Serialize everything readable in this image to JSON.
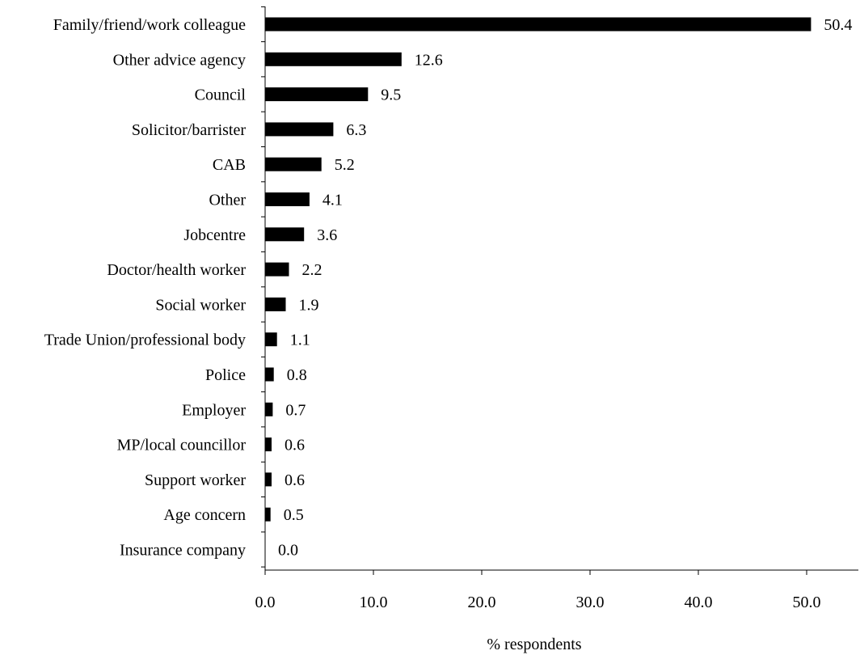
{
  "chart_data": {
    "type": "bar",
    "orientation": "horizontal",
    "title": "",
    "xlabel": "% respondents",
    "ylabel": "",
    "categories": [
      "Family/friend/work colleague",
      "Other advice agency",
      "Council",
      "Solicitor/barrister",
      "CAB",
      "Other",
      "Jobcentre",
      "Doctor/health worker",
      "Social worker",
      "Trade Union/professional body",
      "Police",
      "Employer",
      "MP/local councillor",
      "Support worker",
      "Age concern",
      "Insurance company"
    ],
    "values": [
      50.4,
      12.6,
      9.5,
      6.3,
      5.2,
      4.1,
      3.6,
      2.2,
      1.9,
      1.1,
      0.8,
      0.7,
      0.6,
      0.6,
      0.5,
      0.0
    ],
    "value_labels": [
      "50.4",
      "12.6",
      "9.5",
      "6.3",
      "5.2",
      "4.1",
      "3.6",
      "2.2",
      "1.9",
      "1.1",
      "0.8",
      "0.7",
      "0.6",
      "0.6",
      "0.5",
      "0.0"
    ],
    "xlim": [
      0,
      55
    ],
    "x_ticks": [
      0,
      10,
      20,
      30,
      40,
      50
    ],
    "x_tick_labels": [
      "0.0",
      "10.0",
      "20.0",
      "30.0",
      "40.0",
      "50.0"
    ],
    "grid": false,
    "legend": "none",
    "bar_color": "#000000"
  }
}
